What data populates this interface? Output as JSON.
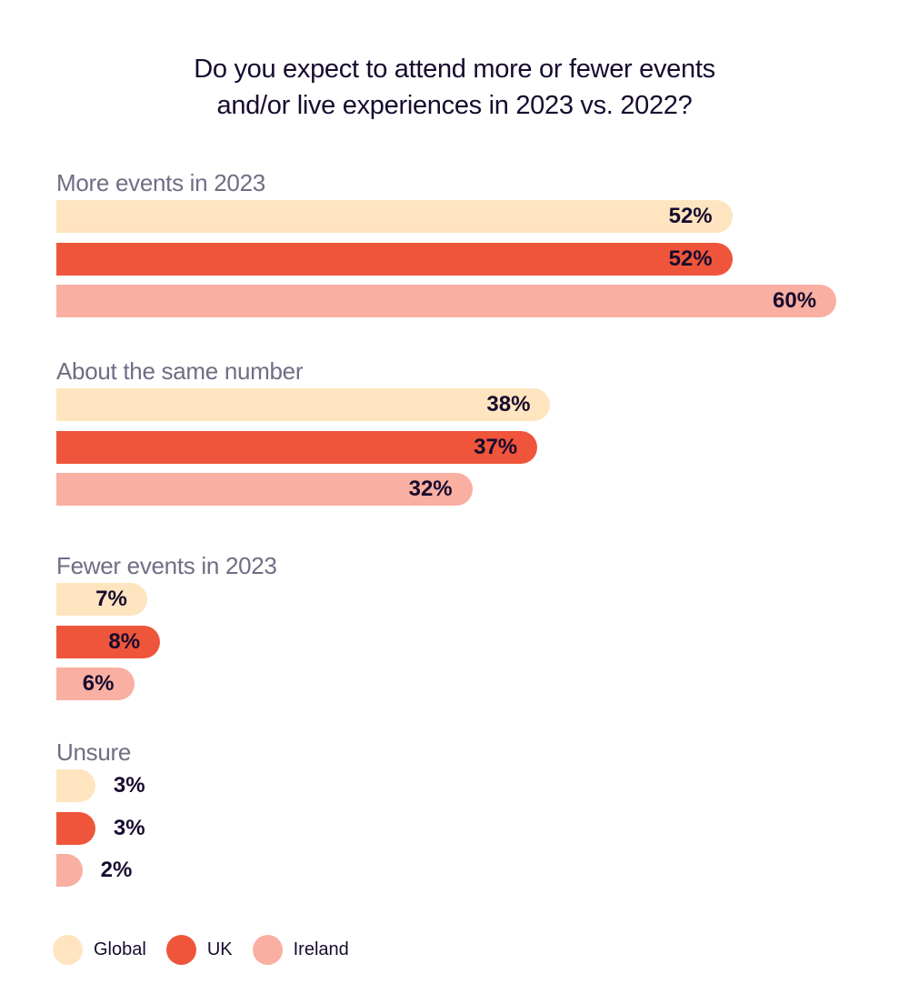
{
  "chart_data": {
    "type": "bar",
    "orientation": "horizontal",
    "title_lines": [
      "Do you expect to attend more or fewer events",
      "and/or live experiences in 2023 vs. 2022?"
    ],
    "categories": [
      "More events in 2023",
      "About the same number",
      "Fewer events in 2023",
      "Unsure"
    ],
    "series": [
      {
        "name": "Global",
        "color": "#fee5bf",
        "values": [
          52,
          38,
          7,
          3
        ]
      },
      {
        "name": "UK",
        "color": "#ef553a",
        "values": [
          52,
          37,
          8,
          3
        ]
      },
      {
        "name": "Ireland",
        "color": "#f9afa1",
        "values": [
          60,
          32,
          6,
          2
        ]
      }
    ],
    "value_format": "{v}%",
    "xlim": [
      0,
      60
    ],
    "legend_position": "bottom-left",
    "grid": false
  },
  "legend": [
    {
      "label": "Global",
      "color": "#fee5bf"
    },
    {
      "label": "UK",
      "color": "#ef553a"
    },
    {
      "label": "Ireland",
      "color": "#f9afa1"
    }
  ]
}
